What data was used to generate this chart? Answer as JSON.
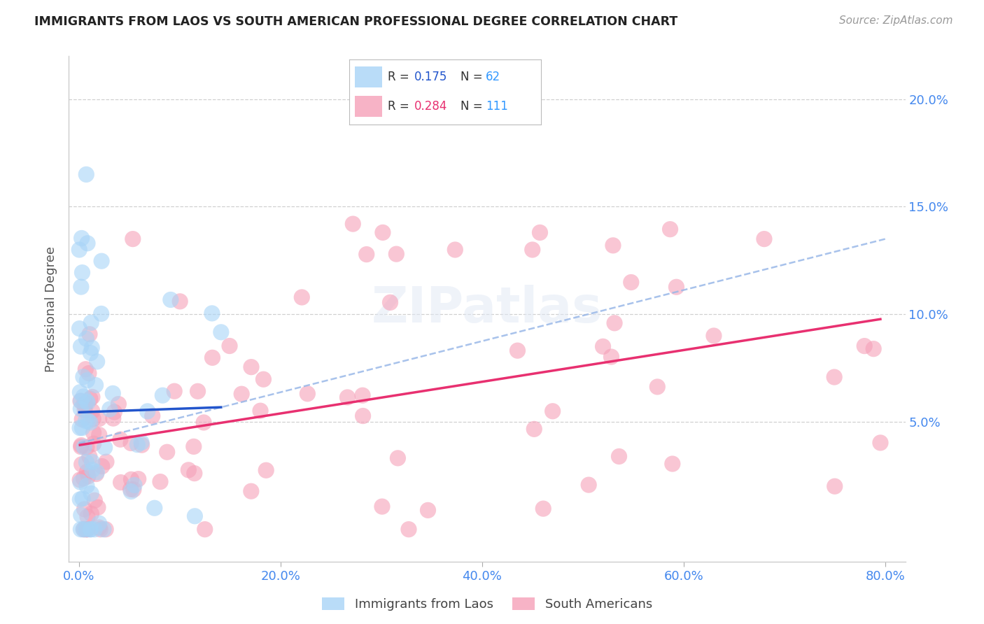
{
  "title": "IMMIGRANTS FROM LAOS VS SOUTH AMERICAN PROFESSIONAL DEGREE CORRELATION CHART",
  "source": "Source: ZipAtlas.com",
  "ylabel": "Professional Degree",
  "x_tick_labels": [
    "0.0%",
    "20.0%",
    "40.0%",
    "60.0%",
    "80.0%"
  ],
  "x_tick_vals": [
    0.0,
    20.0,
    40.0,
    60.0,
    80.0
  ],
  "y_tick_labels": [
    "5.0%",
    "10.0%",
    "15.0%",
    "20.0%"
  ],
  "y_tick_vals": [
    5.0,
    10.0,
    15.0,
    20.0
  ],
  "xlim": [
    -1.0,
    82.0
  ],
  "ylim": [
    -1.5,
    22.0
  ],
  "legend_labels": [
    "Immigrants from Laos",
    "South Americans"
  ],
  "legend_R": [
    0.175,
    0.284
  ],
  "legend_N": [
    62,
    111
  ],
  "laos_color": "#a8d4f7",
  "sa_color": "#f5a0b8",
  "laos_line_color": "#2255cc",
  "sa_line_color": "#e83070",
  "dashed_line_color": "#99b8e8",
  "background_color": "#ffffff",
  "grid_color": "#d0d0d0",
  "title_color": "#222222",
  "tick_label_color": "#4488ee",
  "ylabel_color": "#555555"
}
